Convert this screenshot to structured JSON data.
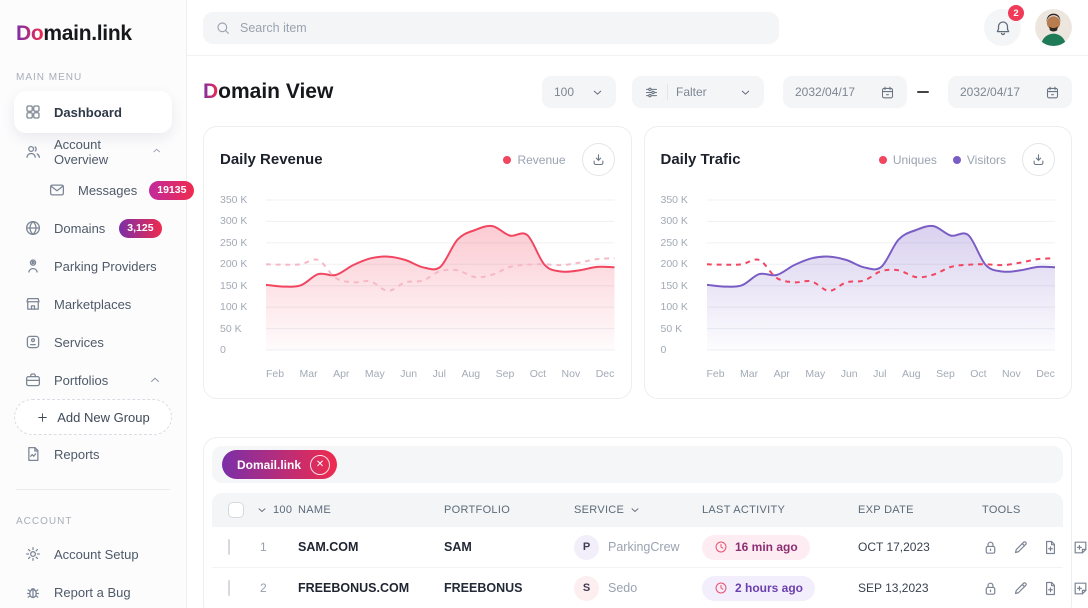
{
  "sidebar": {
    "logo_prefix": "Do",
    "logo_suffix": "main.link",
    "main_section_label": "MAIN MENU",
    "account_section_label": "ACCOUNT",
    "main_menu": [
      {
        "name": "dashboard",
        "label": "Dashboard",
        "icon": "grid",
        "active": true
      },
      {
        "name": "account-overview",
        "label": "Account Overview",
        "icon": "users",
        "chevron": "up"
      },
      {
        "name": "messages",
        "label": "Messages",
        "icon": "envelope",
        "child": true,
        "badge": "19135",
        "badge_style": "magenta"
      },
      {
        "name": "domains",
        "label": "Domains",
        "icon": "globe",
        "badge": "3,125",
        "badge_style": "purple",
        "chevron": "down",
        "badge_inline": true
      },
      {
        "name": "parking-providers",
        "label": "Parking Providers",
        "icon": "parking"
      },
      {
        "name": "marketplaces",
        "label": "Marketplaces",
        "icon": "shop"
      },
      {
        "name": "services",
        "label": "Services",
        "icon": "box"
      },
      {
        "name": "portfolios",
        "label": "Portfolios",
        "icon": "briefcase",
        "chevron": "up"
      },
      {
        "name": "add-new-group",
        "label": "Add New Group",
        "icon": "plus",
        "dashed": true
      },
      {
        "name": "reports",
        "label": "Reports",
        "icon": "report"
      }
    ],
    "account_menu": [
      {
        "name": "account-setup",
        "label": "Account Setup",
        "icon": "gear"
      },
      {
        "name": "report-a-bug",
        "label": "Report a Bug",
        "icon": "bug"
      }
    ]
  },
  "topbar": {
    "search_placeholder": "Search item",
    "notification_count": "2"
  },
  "page": {
    "title_prefix": "D",
    "title_rest": "omain View"
  },
  "filters": {
    "page_size": "100",
    "filter_label": "Falter",
    "date_from": "2032/04/17",
    "date_to": "2032/04/17"
  },
  "chart_data": [
    {
      "type": "line",
      "title": "Daily Revenue",
      "categories": [
        "Feb",
        "Mar",
        "Apr",
        "May",
        "Jun",
        "Jul",
        "Aug",
        "Sep",
        "Oct",
        "Nov",
        "Dec"
      ],
      "ylabel": "",
      "ylim": [
        0,
        350000
      ],
      "y_ticks": [
        "350 K",
        "300 K",
        "250 K",
        "200 K",
        "150 K",
        "100 K",
        "50 K",
        "0"
      ],
      "grid": "horizontal",
      "legend_position": "top-right",
      "legend": [
        {
          "label": "Revenue",
          "color": "#f14560"
        }
      ],
      "values_unit": "thousands, sampled every half month Feb-Dec",
      "series": [
        {
          "name": "Revenue",
          "style": "solid",
          "color": "#f14560",
          "fill": true,
          "values": [
            152,
            148,
            151,
            177,
            175,
            198,
            214,
            218,
            210,
            193,
            194,
            258,
            280,
            289,
            267,
            268,
            198,
            183,
            186,
            194,
            193
          ]
        },
        {
          "name": "comparison (unlabeled dashed)",
          "style": "dashed",
          "color": "#f5b9c6",
          "fill": false,
          "values": [
            200,
            199,
            200,
            210,
            168,
            158,
            160,
            138,
            158,
            162,
            184,
            186,
            170,
            176,
            194,
            199,
            200,
            198,
            204,
            212,
            214
          ]
        }
      ]
    },
    {
      "type": "line",
      "title": "Daily Trafic",
      "categories": [
        "Feb",
        "Mar",
        "Apr",
        "May",
        "Jun",
        "Jul",
        "Aug",
        "Sep",
        "Oct",
        "Nov",
        "Dec"
      ],
      "ylabel": "",
      "ylim": [
        0,
        350000
      ],
      "y_ticks": [
        "350 K",
        "300 K",
        "250 K",
        "200 K",
        "150 K",
        "100 K",
        "50 K",
        "0"
      ],
      "grid": "horizontal",
      "legend_position": "top-right",
      "legend": [
        {
          "label": "Uniques",
          "color": "#f14560"
        },
        {
          "label": "Visitors",
          "color": "#7a5cc5"
        }
      ],
      "values_unit": "thousands, sampled every half month Feb-Dec",
      "series": [
        {
          "name": "Visitors",
          "style": "solid",
          "color": "#7a5cc5",
          "fill": true,
          "values": [
            152,
            148,
            151,
            177,
            175,
            198,
            214,
            218,
            210,
            193,
            194,
            258,
            280,
            289,
            267,
            268,
            198,
            183,
            186,
            194,
            193
          ]
        },
        {
          "name": "Uniques",
          "style": "dashed",
          "color": "#f14560",
          "fill": false,
          "values": [
            200,
            199,
            200,
            210,
            168,
            158,
            160,
            138,
            158,
            162,
            184,
            186,
            170,
            176,
            194,
            199,
            200,
            198,
            204,
            212,
            214
          ]
        }
      ]
    }
  ],
  "table": {
    "chip_label": "Domail.link",
    "header_count": "100",
    "columns": [
      "NAME",
      "PORTFOLIO",
      "SERVICE",
      "LAST ACTIVITY",
      "EXP DATE",
      "TOOLS"
    ],
    "tools_icons": [
      "lock",
      "pencil",
      "file-plus",
      "note-plus"
    ],
    "rows": [
      {
        "num": "1",
        "name": "SAM.COM",
        "portfolio": "SAM",
        "service_initial": "P",
        "service_initial_bg": "#f3effa",
        "service": "ParkingCrew",
        "last_activity": "16 min ago",
        "activity_bg": "#fdedf2",
        "activity_color": "#8c2f72",
        "exp_date": "OCT 17,2023"
      },
      {
        "num": "2",
        "name": "FREEBONUS.COM",
        "portfolio": "FREEBONUS",
        "service_initial": "S",
        "service_initial_bg": "#fdeef0",
        "service": "Sedo",
        "last_activity": "2 hours ago",
        "activity_bg": "#f3eefb",
        "activity_color": "#6b3fae",
        "exp_date": "SEP 13,2023"
      }
    ]
  },
  "colors": {
    "gradient_purple": "#7b2fa8",
    "gradient_magenta": "#c12a9c",
    "gradient_red": "#ef2b4e",
    "line_red": "#f14560",
    "dashed_pink": "#f5b9c6",
    "line_purple": "#7a5cc5",
    "notification_badge_red": "#ef3b57"
  }
}
